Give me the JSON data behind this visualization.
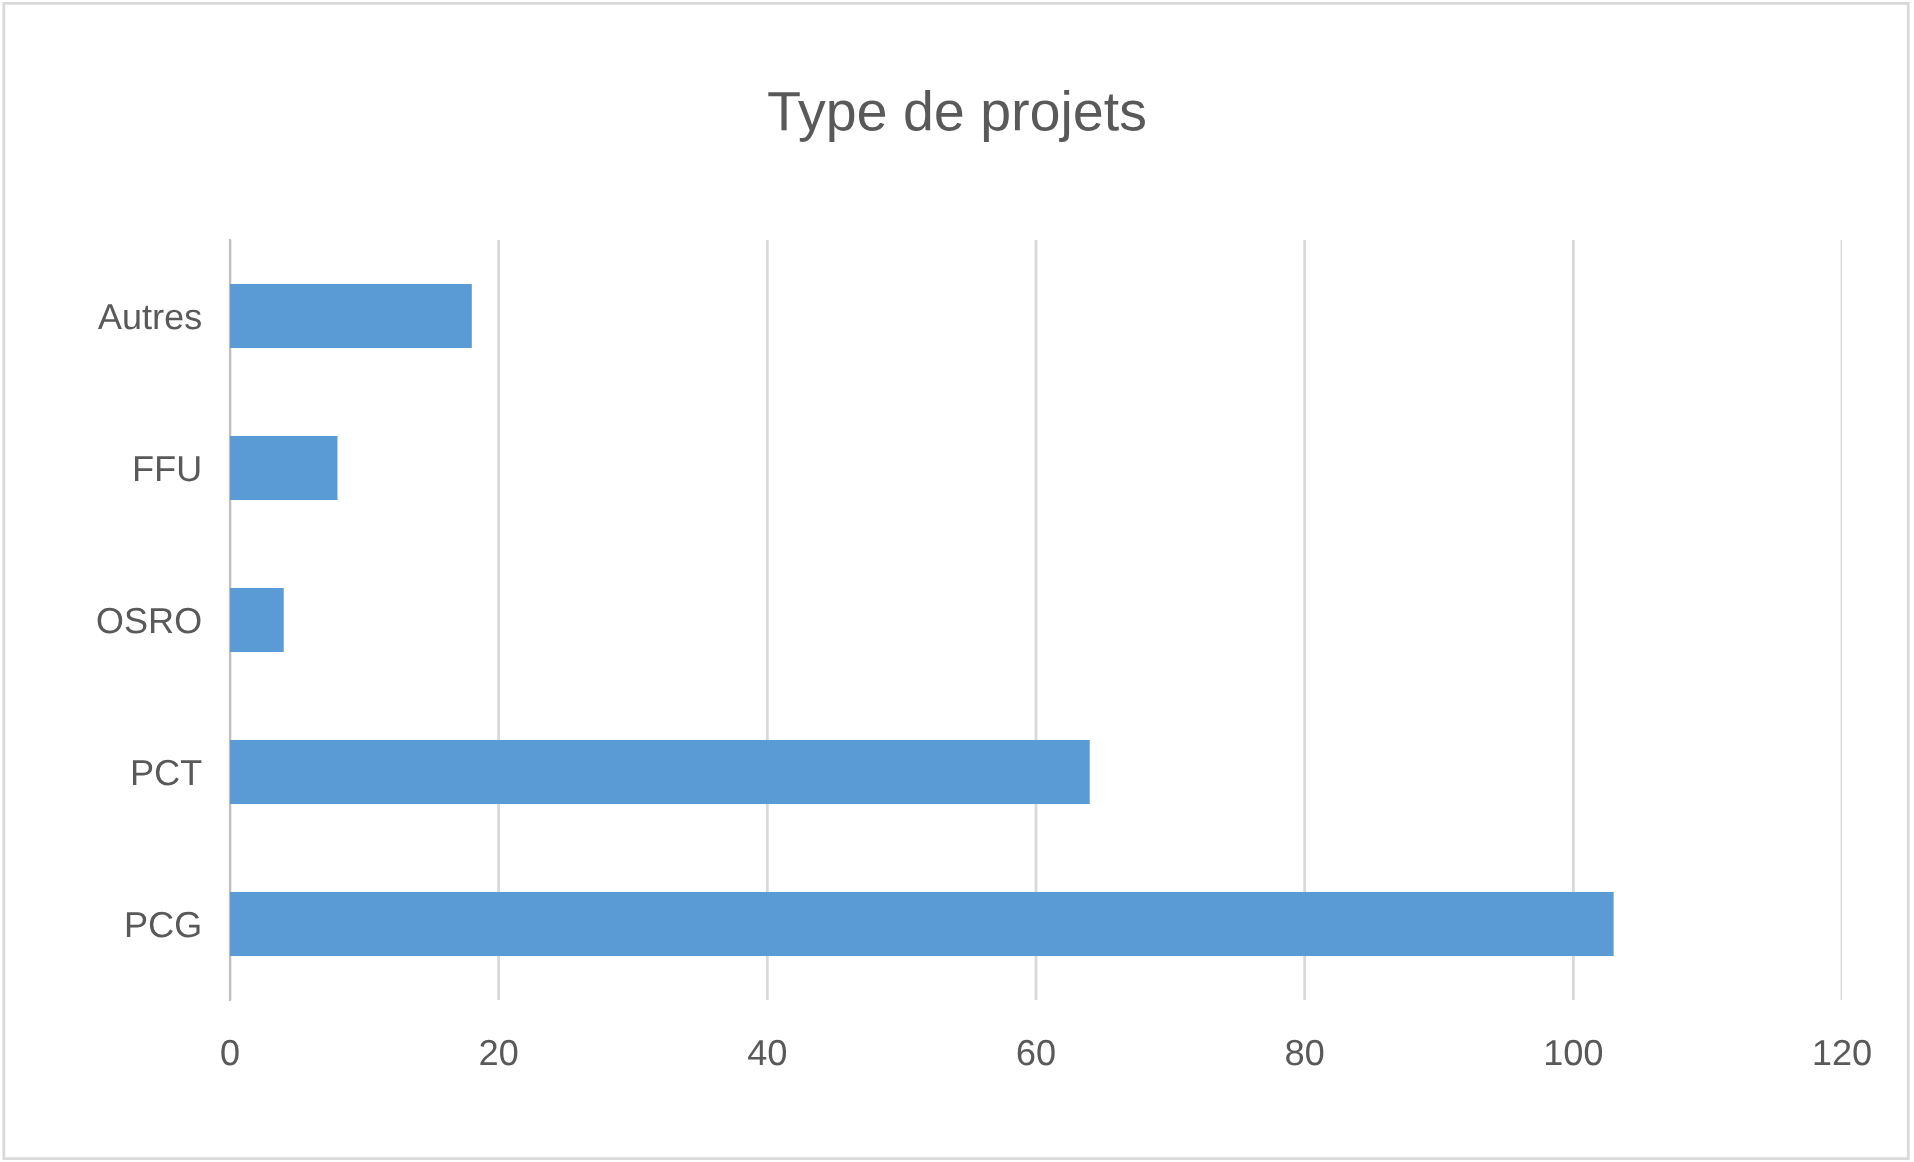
{
  "chart_data": {
    "type": "bar",
    "orientation": "horizontal",
    "title": "Type de projets",
    "categories": [
      "Autres",
      "FFU",
      "OSRO",
      "PCT",
      "PCG"
    ],
    "values": [
      18,
      8,
      4,
      64,
      103
    ],
    "color": "#5b9bd5",
    "xlim": [
      0,
      120
    ],
    "xticks": [
      0,
      20,
      40,
      60,
      80,
      100,
      120
    ],
    "grid": "x"
  }
}
